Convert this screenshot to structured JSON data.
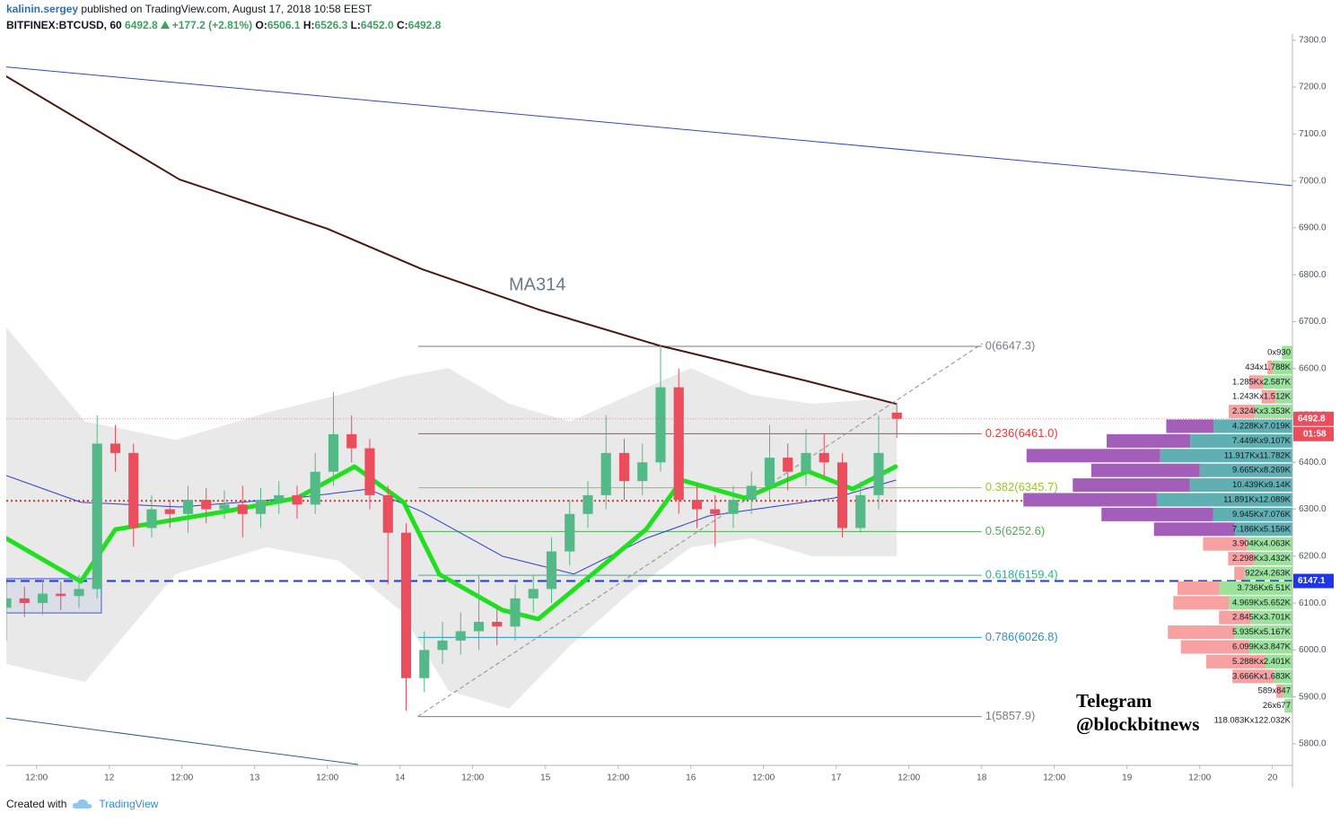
{
  "header": {
    "author": "kalinin.sergey",
    "published": "published on TradingView.com, August 17, 2018 10:58 EEST",
    "symbol": "BITFINEX:BTCUSD, 60",
    "last": "6492.8",
    "change": "+177.2 (+2.81%)",
    "ohlc": [
      {
        "key": "O:",
        "value": "6506.1"
      },
      {
        "key": "H:",
        "value": "6526.3"
      },
      {
        "key": "L:",
        "value": "6452.0"
      },
      {
        "key": "C:",
        "value": "6492.8"
      }
    ]
  },
  "chart_data": {
    "type": "candlestick",
    "xlim": [
      7,
      219.3
    ],
    "xticks": [
      {
        "value": 12,
        "label": "12:00"
      },
      {
        "value": 24,
        "label": "12"
      },
      {
        "value": 36,
        "label": "12:00"
      },
      {
        "value": 48,
        "label": "13"
      },
      {
        "value": 60,
        "label": "12:00"
      },
      {
        "value": 72,
        "label": "14"
      },
      {
        "value": 84,
        "label": "12:00"
      },
      {
        "value": 96,
        "label": "15"
      },
      {
        "value": 108,
        "label": "12:00"
      },
      {
        "value": 120,
        "label": "16"
      },
      {
        "value": 132,
        "label": "12:00"
      },
      {
        "value": 144,
        "label": "17"
      },
      {
        "value": 156,
        "label": "12:00"
      },
      {
        "value": 168,
        "label": "18"
      },
      {
        "value": 180,
        "label": "12:00"
      },
      {
        "value": 192,
        "label": "19"
      },
      {
        "value": 204,
        "label": "12:00"
      },
      {
        "value": 216,
        "label": "20"
      }
    ],
    "ylim": [
      5754,
      7313
    ],
    "yticks": [
      {
        "value": 5800,
        "label": "5800.0"
      },
      {
        "value": 5900,
        "label": "5900.0"
      },
      {
        "value": 6000,
        "label": "6000.0"
      },
      {
        "value": 6100,
        "label": "6100.0"
      },
      {
        "value": 6200,
        "label": "6200.0"
      },
      {
        "value": 6300,
        "label": "6300.0"
      },
      {
        "value": 6400,
        "label": "6400.0"
      },
      {
        "value": 6500,
        "label": "6500.0"
      },
      {
        "value": 6600,
        "label": "6600.0"
      },
      {
        "value": 6700,
        "label": "6700.0"
      },
      {
        "value": 6800,
        "label": "6800.0"
      },
      {
        "value": 6900,
        "label": "6900.0"
      },
      {
        "value": 7000,
        "label": "7000.0"
      },
      {
        "value": 7100,
        "label": "7100.0"
      },
      {
        "value": 7200,
        "label": "7200.0"
      },
      {
        "value": 7300,
        "label": "7300.0"
      }
    ],
    "candles": {
      "up_color": "#53b987",
      "down_color": "#eb4d5c",
      "x": [
        7,
        10,
        13,
        16,
        19,
        22,
        25,
        28,
        31,
        34,
        37,
        40,
        43,
        46,
        49,
        52,
        55,
        58,
        61,
        64,
        67,
        70,
        73,
        76,
        79,
        82,
        85,
        88,
        91,
        94,
        97,
        100,
        103,
        106,
        109,
        112,
        115,
        118,
        121,
        124,
        127,
        130,
        133,
        136,
        139,
        142,
        145,
        148,
        151,
        154
      ],
      "open": [
        6090,
        6110,
        6100,
        6120,
        6115,
        6130,
        6440,
        6420,
        6260,
        6300,
        6290,
        6320,
        6300,
        6310,
        6290,
        6320,
        6330,
        6310,
        6380,
        6460,
        6430,
        6330,
        6250,
        5940,
        6000,
        6020,
        6040,
        6060,
        6050,
        6110,
        6130,
        6210,
        6290,
        6330,
        6420,
        6360,
        6400,
        6560,
        6320,
        6300,
        6290,
        6320,
        6350,
        6410,
        6380,
        6420,
        6400,
        6260,
        6330,
        6506.1
      ],
      "high": [
        6140,
        6135,
        6150,
        6145,
        6160,
        6500,
        6480,
        6440,
        6330,
        6320,
        6350,
        6345,
        6340,
        6350,
        6345,
        6360,
        6350,
        6420,
        6550,
        6500,
        6450,
        6350,
        6270,
        6040,
        6060,
        6080,
        6160,
        6090,
        6140,
        6160,
        6240,
        6320,
        6360,
        6500,
        6450,
        6440,
        6650,
        6600,
        6350,
        6330,
        6350,
        6380,
        6480,
        6440,
        6470,
        6460,
        6420,
        6360,
        6500,
        6526.3
      ],
      "low": [
        6020,
        6070,
        6075,
        6085,
        6090,
        6110,
        6380,
        6220,
        6240,
        6260,
        6250,
        6270,
        6280,
        6240,
        6260,
        6290,
        6280,
        6290,
        6350,
        6400,
        6300,
        6140,
        5870,
        5910,
        5970,
        5990,
        6000,
        6010,
        6020,
        6080,
        6100,
        6180,
        6260,
        6300,
        6320,
        6330,
        6380,
        6290,
        6260,
        6220,
        6260,
        6290,
        6320,
        6340,
        6350,
        6370,
        6240,
        6250,
        6300,
        6452
      ],
      "close": [
        6110,
        6100,
        6120,
        6115,
        6130,
        6440,
        6420,
        6260,
        6300,
        6290,
        6320,
        6300,
        6310,
        6290,
        6320,
        6330,
        6310,
        6380,
        6460,
        6430,
        6330,
        6250,
        5940,
        6000,
        6020,
        6040,
        6060,
        6050,
        6110,
        6130,
        6210,
        6290,
        6330,
        6420,
        6360,
        6400,
        6560,
        6320,
        6300,
        6290,
        6320,
        6350,
        6410,
        6380,
        6420,
        6400,
        6260,
        6330,
        6420,
        6492.8
      ]
    },
    "band": {
      "color": "#e3e3e3",
      "x": [
        7,
        20,
        35,
        50,
        62,
        72,
        80,
        90,
        100,
        110,
        120,
        130,
        140,
        150,
        154
      ],
      "upper": [
        6688,
        6487,
        6448,
        6506,
        6544,
        6582,
        6601,
        6525,
        6487,
        6544,
        6601,
        6544,
        6525,
        6534,
        6525
      ],
      "lower": [
        5970,
        5932,
        6162,
        6219,
        6190,
        6085,
        5913,
        5875,
        6008,
        6123,
        6219,
        6238,
        6200,
        6200,
        6200
      ]
    },
    "lines": [
      {
        "color": "#3346c8",
        "width": 1,
        "x": [
          7,
          219.3
        ],
        "values": [
          7243,
          6990
        ]
      },
      {
        "color": "#4a1a10",
        "width": 2,
        "x": [
          7,
          35.6,
          60,
          75.6,
          94.8,
          114.8,
          139.3,
          153.8
        ],
        "values": [
          7223,
          7003,
          6898,
          6812,
          6726,
          6649,
          6573,
          6525
        ]
      },
      {
        "color": "#2a3fd6",
        "width": 1,
        "x": [
          7,
          19.3,
          35.6,
          54.8,
          66.7,
          75.6,
          88.9,
          100.7,
          112.6,
          123,
          133.3,
          143.7,
          153.8
        ],
        "values": [
          6372,
          6315,
          6305,
          6324,
          6343,
          6295,
          6200,
          6162,
          6238,
          6286,
          6305,
          6324,
          6362
        ]
      },
      {
        "color": "#1fe01f",
        "width": 5,
        "x": [
          7,
          19.3,
          25,
          43,
          55,
          64.5,
          72.6,
          78.5,
          88.9,
          94.8,
          103.7,
          112.6,
          118.5,
          128.9,
          139.3,
          146.7,
          153.8
        ],
        "values": [
          6238,
          6146,
          6257,
          6295,
          6324,
          6391,
          6315,
          6161,
          6085,
          6066,
          6161,
          6257,
          6362,
          6324,
          6381,
          6343,
          6391
        ]
      },
      {
        "color": "#2b5f8f",
        "width": 1,
        "x": [
          7,
          65
        ],
        "values": [
          5855,
          5756
        ]
      },
      {
        "color": "#8c8c8c",
        "width": 1,
        "dash": true,
        "x": [
          75,
          168.1
        ],
        "values": [
          5859,
          6653
        ]
      }
    ],
    "rectangle": {
      "color": "#3b5bd9",
      "x": [
        7,
        22.7
      ],
      "y": [
        6079,
        6152
      ]
    },
    "price_lines": [
      {
        "value": 6318,
        "color": "#e53935",
        "dash": "2 3"
      },
      {
        "value": 6147.1,
        "color": "#1f35e8",
        "dash": "10 6"
      }
    ],
    "fibonacci": {
      "x": [
        75,
        168
      ],
      "levels": [
        {
          "price": 6647.3,
          "label": "0(6647.3)",
          "color": "#787b86"
        },
        {
          "price": 6461.0,
          "label": "0.236(6461.0)",
          "color": "#e53935"
        },
        {
          "price": 6345.7,
          "label": "0.382(6345.7)",
          "color": "#9cc42e"
        },
        {
          "price": 6252.6,
          "label": "0.5(6252.6)",
          "color": "#4caf50"
        },
        {
          "price": 6159.4,
          "label": "0.618(6159.4)",
          "color": "#2bb38a"
        },
        {
          "price": 6026.8,
          "label": "0.786(6026.8)",
          "color": "#2a8fc9"
        },
        {
          "price": 5857.9,
          "label": "1(5857.9)",
          "color": "#787b86"
        }
      ]
    },
    "annotations": [
      "MA314"
    ],
    "countdown": "01:58",
    "volume_profile": {
      "total": "118.083Kx122.032K",
      "rows": [
        {
          "label": "0x930",
          "values": [
            0,
            930
          ],
          "colors": [
            "#f7a1a1",
            "#9be29b"
          ]
        },
        {
          "label": "434x1.788K",
          "values": [
            434,
            1788
          ],
          "colors": [
            "#f7a1a1",
            "#9be29b"
          ]
        },
        {
          "label": "1.285Kx2.587K",
          "values": [
            1285,
            2587
          ],
          "colors": [
            "#f7a1a1",
            "#9be29b"
          ]
        },
        {
          "label": "1.243Kx1.512K",
          "values": [
            1243,
            1512
          ],
          "colors": [
            "#f7a1a1",
            "#9be29b"
          ]
        },
        {
          "label": "2.324Kx3.353K",
          "values": [
            2324,
            3353
          ],
          "colors": [
            "#f7a1a1",
            "#9be29b"
          ]
        },
        {
          "label": "4.228Kx7.019K",
          "values": [
            4228,
            7019
          ],
          "colors": [
            "#a25eb8",
            "#5fafb3"
          ]
        },
        {
          "label": "7.449Kx9.107K",
          "values": [
            7449,
            9107
          ],
          "colors": [
            "#a25eb8",
            "#5fafb3"
          ]
        },
        {
          "label": "11.917Kx11.782K",
          "values": [
            11917,
            11782
          ],
          "colors": [
            "#a25eb8",
            "#5fafb3"
          ]
        },
        {
          "label": "9.665Kx8.269K",
          "values": [
            9665,
            8269
          ],
          "colors": [
            "#a25eb8",
            "#5fafb3"
          ]
        },
        {
          "label": "10.439Kx9.14K",
          "values": [
            10439,
            9140
          ],
          "colors": [
            "#a25eb8",
            "#5fafb3"
          ]
        },
        {
          "label": "11.891Kx12.089K",
          "values": [
            11891,
            12089
          ],
          "colors": [
            "#a25eb8",
            "#5fafb3"
          ]
        },
        {
          "label": "9.945Kx7.076K",
          "values": [
            9945,
            7076
          ],
          "colors": [
            "#a25eb8",
            "#5fafb3"
          ]
        },
        {
          "label": "7.186Kx5.156K",
          "values": [
            7186,
            5156
          ],
          "colors": [
            "#a25eb8",
            "#5fafb3"
          ]
        },
        {
          "label": "3.904Kx4.063K",
          "values": [
            3904,
            4063
          ],
          "colors": [
            "#f7a1a1",
            "#9be29b"
          ]
        },
        {
          "label": "2.298Kx3.432K",
          "values": [
            2298,
            3432
          ],
          "colors": [
            "#f7a1a1",
            "#9be29b"
          ]
        },
        {
          "label": "922x4.263K",
          "values": [
            922,
            4263
          ],
          "colors": [
            "#f7a1a1",
            "#9be29b"
          ]
        },
        {
          "label": "3.736Kx6.51K",
          "values": [
            3736,
            6510
          ],
          "colors": [
            "#f7a1a1",
            "#9be29b"
          ]
        },
        {
          "label": "4.969Kx5.652K",
          "values": [
            4969,
            5652
          ],
          "colors": [
            "#f7a1a1",
            "#9be29b"
          ]
        },
        {
          "label": "2.845Kx3.701K",
          "values": [
            2845,
            3701
          ],
          "colors": [
            "#f7a1a1",
            "#9be29b"
          ]
        },
        {
          "label": "5.935Kx5.167K",
          "values": [
            5935,
            5167
          ],
          "colors": [
            "#f7a1a1",
            "#9be29b"
          ]
        },
        {
          "label": "6.099Kx3.847K",
          "values": [
            6099,
            3847
          ],
          "colors": [
            "#f7a1a1",
            "#9be29b"
          ]
        },
        {
          "label": "5.288Kx2.401K",
          "values": [
            5288,
            2401
          ],
          "colors": [
            "#f7a1a1",
            "#9be29b"
          ]
        },
        {
          "label": "3.666Kx1.683K",
          "values": [
            3666,
            1683
          ],
          "colors": [
            "#f7a1a1",
            "#9be29b"
          ]
        },
        {
          "label": "589x847",
          "values": [
            589,
            847
          ],
          "colors": [
            "#f7a1a1",
            "#9be29b"
          ]
        },
        {
          "label": "26x677",
          "values": [
            26,
            677
          ],
          "colors": [
            "#f7a1a1",
            "#9be29b"
          ]
        }
      ]
    }
  },
  "watermark": [
    "Telegram",
    "@blockbitnews"
  ],
  "footer": {
    "created": "Created with",
    "brand": "TradingView"
  }
}
